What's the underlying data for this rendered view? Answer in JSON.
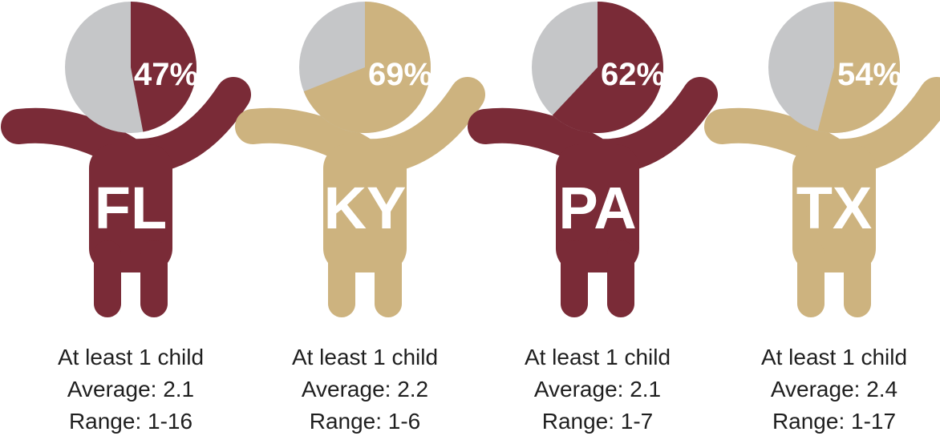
{
  "figures": [
    {
      "state": "FL",
      "percent": 47,
      "percent_label": "47%",
      "color": "#7a2b37",
      "lines": [
        "At least 1 child",
        "Average: 2.1",
        "Range: 1-16"
      ]
    },
    {
      "state": "KY",
      "percent": 69,
      "percent_label": "69%",
      "color": "#cdb37f",
      "lines": [
        "At least 1 child",
        "Average: 2.2",
        "Range: 1-6"
      ]
    },
    {
      "state": "PA",
      "percent": 62,
      "percent_label": "62%",
      "color": "#7a2b37",
      "lines": [
        "At least 1 child",
        "Average: 2.1",
        "Range: 1-7"
      ]
    },
    {
      "state": "TX",
      "percent": 54,
      "percent_label": "54%",
      "color": "#cdb37f",
      "lines": [
        "At least 1 child",
        "Average: 2.4",
        "Range: 1-17"
      ]
    }
  ]
}
